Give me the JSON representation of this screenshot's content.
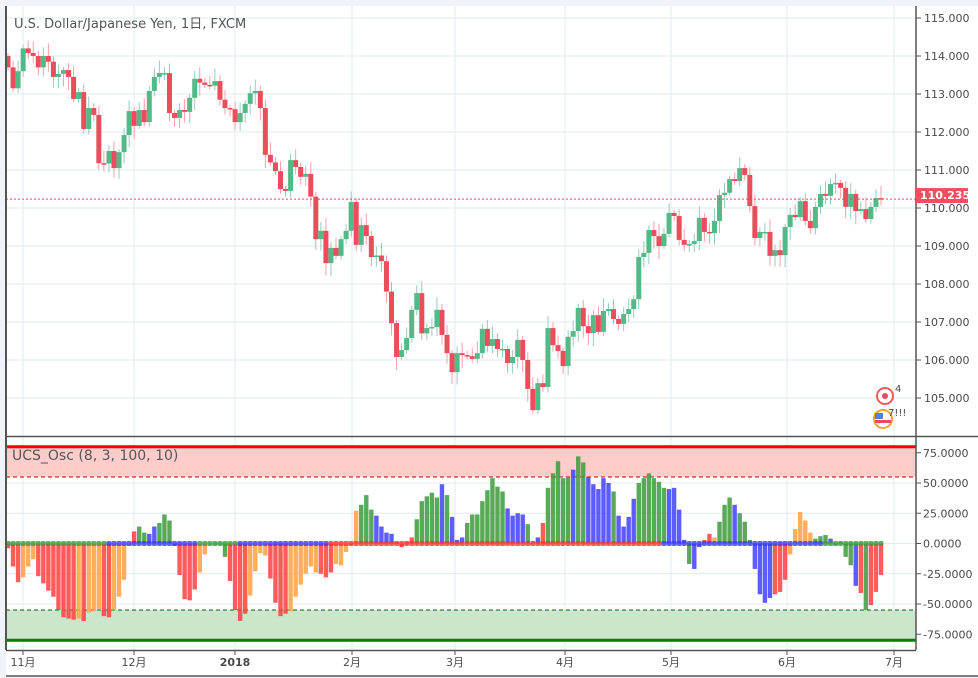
{
  "header": {
    "title": "U.S. Dollar/Japanese Yen, 1日, FXCM"
  },
  "colors": {
    "up": "#53b987",
    "down": "#eb4d5c",
    "price_label_bg": "#ef4f5f",
    "osc_red": "#ff4040",
    "osc_orange": "#ffa040",
    "osc_green": "#3c9a3c",
    "osc_blue": "#4040ff"
  },
  "chart_data": [
    {
      "type": "candlestick",
      "title": "U.S. Dollar/Japanese Yen, 1日, FXCM",
      "ylim": [
        104.6,
        115.3
      ],
      "y_ticks": [
        "115.000",
        "114.000",
        "113.000",
        "112.000",
        "111.000",
        "110.000",
        "109.000",
        "108.000",
        "107.000",
        "106.000",
        "105.000"
      ],
      "x_ticks": [
        "11月",
        "12月",
        "2018",
        "2月",
        "3月",
        "4月",
        "5月",
        "6月",
        "7月"
      ],
      "first_open": 114.0,
      "last_price": 110.235,
      "last_price_label": "110.235",
      "grid": true,
      "closes": [
        113.7,
        113.15,
        113.6,
        114.2,
        114.08,
        114.0,
        113.7,
        114.0,
        113.85,
        113.45,
        113.53,
        113.63,
        113.45,
        112.87,
        113.05,
        112.08,
        112.63,
        112.45,
        111.18,
        111.17,
        111.5,
        111.05,
        111.47,
        111.92,
        112.55,
        112.16,
        112.58,
        112.26,
        113.08,
        113.45,
        113.55,
        113.55,
        112.5,
        112.37,
        112.58,
        112.53,
        112.9,
        113.4,
        113.3,
        113.24,
        113.22,
        113.34,
        112.85,
        112.63,
        112.6,
        112.26,
        112.5,
        112.74,
        113.02,
        113.08,
        112.63,
        111.4,
        111.2,
        110.97,
        110.5,
        110.45,
        111.26,
        111.08,
        110.82,
        110.9,
        110.3,
        109.18,
        109.4,
        108.55,
        108.95,
        108.74,
        109.18,
        109.4,
        110.16,
        109.03,
        109.55,
        109.26,
        108.71,
        108.75,
        108.6,
        107.8,
        106.97,
        106.08,
        106.26,
        106.58,
        107.32,
        107.76,
        106.7,
        106.84,
        106.87,
        107.32,
        106.66,
        106.18,
        105.68,
        106.18,
        106.13,
        106.1,
        106.03,
        106.18,
        106.82,
        106.37,
        106.55,
        106.29,
        106.29,
        105.92,
        106.08,
        106.53,
        106.0,
        105.24,
        104.68,
        105.39,
        105.29,
        106.84,
        106.39,
        106.24,
        105.84,
        106.61,
        106.76,
        107.37,
        106.89,
        106.71,
        107.18,
        106.74,
        107.29,
        107.34,
        107.08,
        106.95,
        107.21,
        107.34,
        107.6,
        108.71,
        108.82,
        109.42,
        109.26,
        109.0,
        109.32,
        109.87,
        109.79,
        109.16,
        109.03,
        109.05,
        109.13,
        109.74,
        109.37,
        109.34,
        109.66,
        110.34,
        110.4,
        110.76,
        110.71,
        111.05,
        110.87,
        110.05,
        109.21,
        109.37,
        109.37,
        108.74,
        108.89,
        108.76,
        109.5,
        109.82,
        109.76,
        110.18,
        109.66,
        109.47,
        110.03,
        110.37,
        110.32,
        110.63,
        110.66,
        110.53,
        110.03,
        110.37,
        109.92,
        109.97,
        109.71,
        110.03,
        110.26,
        110.235
      ]
    },
    {
      "type": "bar",
      "title": "UCS_Osc (8, 3, 100, 10)",
      "ylim": [
        -85,
        85
      ],
      "y_ticks": [
        "75.0000",
        "50.0000",
        "25.0000",
        "0.0000",
        "-25.0000",
        "-50.0000",
        "-75.0000"
      ],
      "overbought_line": 80,
      "overbought_dashed": 55,
      "oversold_line": -80,
      "oversold_dashed": -55,
      "values": [
        -4,
        -19,
        -32,
        -28,
        -19,
        -13,
        -27,
        -33,
        -39,
        -44,
        -55,
        -61,
        -62,
        -63,
        -62,
        -64,
        -57,
        -56,
        -54,
        -60,
        -61,
        -55,
        -44,
        -30,
        -2,
        10,
        14,
        9,
        8,
        14,
        17,
        24,
        19,
        -2,
        -26,
        -46,
        -47,
        -38,
        -24,
        -9,
        0,
        0,
        0,
        -11,
        -31,
        -55,
        -64,
        -58,
        -43,
        -23,
        -8,
        -10,
        -29,
        -49,
        -60,
        -58,
        -56,
        -44,
        -34,
        -25,
        -19,
        -24,
        -25,
        -28,
        -24,
        -17,
        -18,
        -7,
        -1,
        27,
        32,
        40,
        28,
        23,
        14,
        9,
        8,
        1,
        -3,
        1,
        5,
        20,
        35,
        39,
        42,
        38,
        49,
        40,
        22,
        3,
        5,
        17,
        24,
        24,
        35,
        44,
        54,
        47,
        43,
        29,
        23,
        25,
        24,
        16,
        1,
        5,
        17,
        46,
        58,
        68,
        54,
        55,
        61,
        72,
        67,
        55,
        49,
        45,
        54,
        50,
        43,
        23,
        14,
        22,
        37,
        50,
        54,
        58,
        54,
        51,
        46,
        45,
        46,
        28,
        3,
        -17,
        -21,
        -3,
        3,
        8,
        5,
        18,
        32,
        38,
        32,
        25,
        18,
        3,
        -21,
        -42,
        -49,
        -45,
        -42,
        -40,
        -30,
        -9,
        12,
        26,
        19,
        9,
        4,
        6,
        7,
        4,
        -1,
        1,
        -11,
        -18,
        -35,
        -41,
        -55,
        -51,
        -40,
        -26
      ],
      "colors": "rrrooorrrrrrrrorooorroooorggbbgggbrrrroooggg rrrr oooorrrroooooorrrooorogggbbbbbrrrgggggbgbbbgg ggggggbbbbgbbrgggggbggbbbbbgbbbbggggggbbbbgbbrro gggbgggbbbbrrrooooogggbbbggbrgrrrrrooo",
      "zero_line_segments": [
        {
          "from": 0,
          "to": 19,
          "color": "green"
        },
        {
          "from": 20,
          "to": 37,
          "color": "blue"
        },
        {
          "from": 38,
          "to": 45,
          "color": "green"
        },
        {
          "from": 46,
          "to": 63,
          "color": "blue"
        },
        {
          "from": 64,
          "to": 129,
          "color": "red"
        },
        {
          "from": 130,
          "to": 161,
          "color": "blue"
        },
        {
          "from": 162,
          "to": 173,
          "color": "green"
        }
      ]
    }
  ],
  "events": [
    {
      "icon": "event-flag-icon",
      "label": "4"
    },
    {
      "icon": "us-flag-event-icon",
      "label": "7!!!"
    }
  ]
}
